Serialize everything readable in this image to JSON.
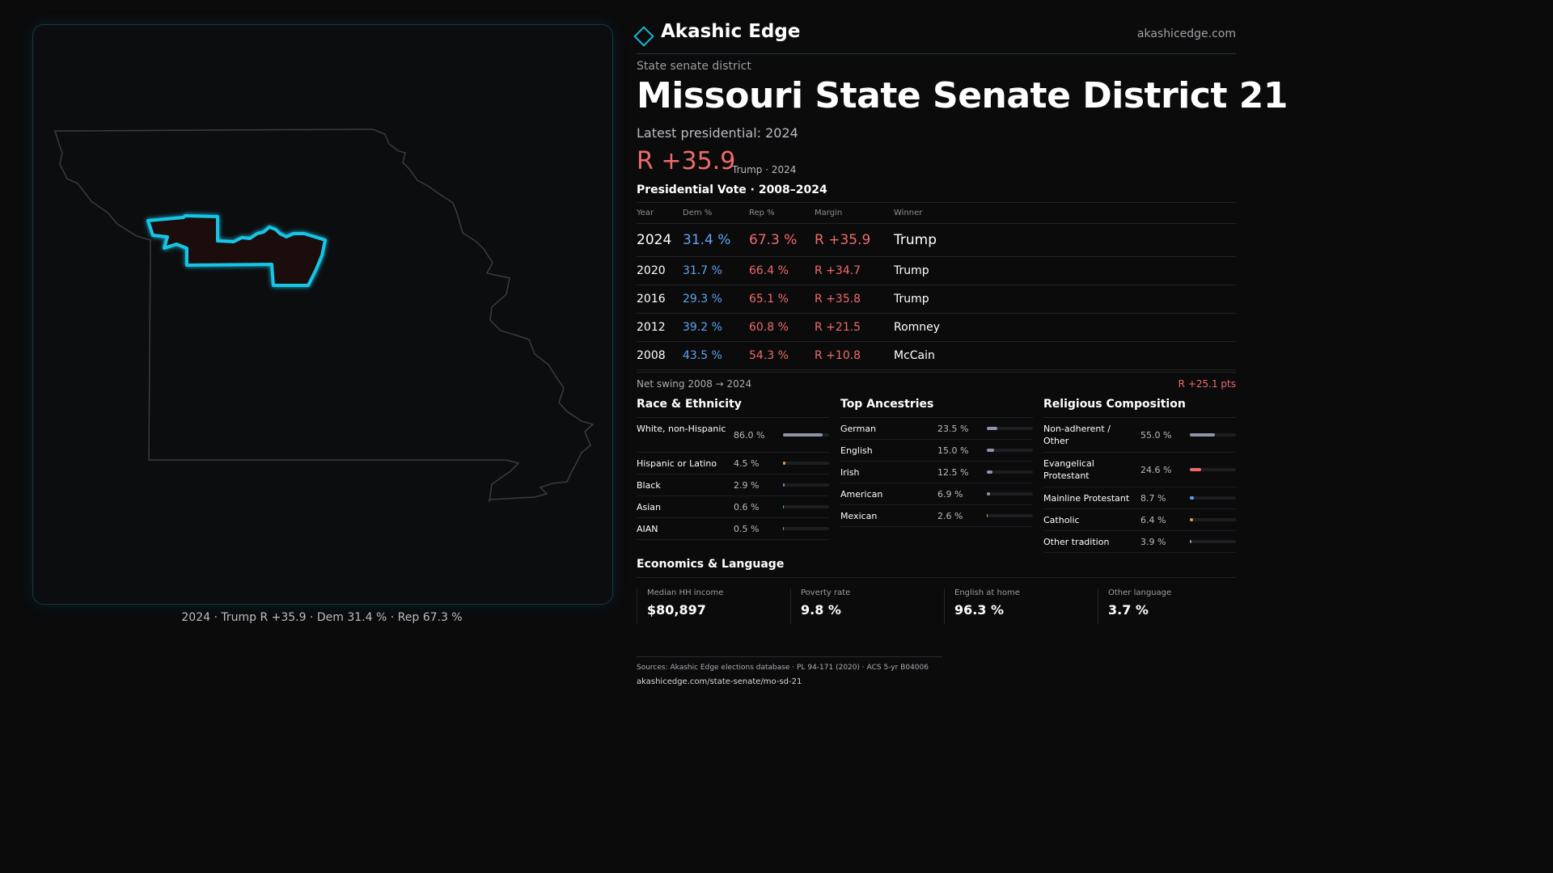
{
  "brand": {
    "name": "Akashic Edge",
    "url": "akashicedge.com"
  },
  "district": {
    "kind": "State senate district",
    "title": "Missouri State Senate District 21",
    "latest_label": "Latest presidential: 2024",
    "margin": "R +35.9",
    "margin_sub": "Trump · 2024"
  },
  "map": {
    "caption": "2024 · Trump R +35.9 · Dem 31.4 % · Rep 67.3 %",
    "district_outline_color": "#19c6e6",
    "state_outline_color": "#3b3c3f"
  },
  "vote_table": {
    "title": "Presidential Vote · 2008–2024",
    "headers": {
      "year": "Year",
      "dem": "Dem %",
      "rep": "Rep %",
      "margin": "Margin",
      "winner": "Winner"
    },
    "rows": [
      {
        "year": "2024",
        "dem": "31.4 %",
        "rep": "67.3 %",
        "margin": "R +35.9",
        "winner": "Trump"
      },
      {
        "year": "2020",
        "dem": "31.7 %",
        "rep": "66.4 %",
        "margin": "R +34.7",
        "winner": "Trump"
      },
      {
        "year": "2016",
        "dem": "29.3 %",
        "rep": "65.1 %",
        "margin": "R +35.8",
        "winner": "Trump"
      },
      {
        "year": "2012",
        "dem": "39.2 %",
        "rep": "60.8 %",
        "margin": "R +21.5",
        "winner": "Romney"
      },
      {
        "year": "2008",
        "dem": "43.5 %",
        "rep": "54.3 %",
        "margin": "R +10.8",
        "winner": "McCain"
      }
    ],
    "swing_label": "Net swing 2008 → 2024",
    "swing_value": "R +25.1 pts"
  },
  "race": {
    "title": "Race & Ethnicity",
    "items": [
      {
        "label": "White, non-Hispanic",
        "pct": "86.0 %",
        "value": 86.0,
        "color": "#8d96a8"
      },
      {
        "label": "Hispanic or Latino",
        "pct": "4.5 %",
        "value": 4.5,
        "color": "#e0a331"
      },
      {
        "label": "Black",
        "pct": "2.9 %",
        "value": 2.9,
        "color": "#6f87c8"
      },
      {
        "label": "Asian",
        "pct": "0.6 %",
        "value": 0.6,
        "color": "#3fb6a8"
      },
      {
        "label": "AIAN",
        "pct": "0.5 %",
        "value": 0.5,
        "color": "#9a7cd6"
      }
    ]
  },
  "ancestry": {
    "title": "Top Ancestries",
    "items": [
      {
        "label": "German",
        "pct": "23.5 %",
        "value": 23.5,
        "color": "#8d96a8"
      },
      {
        "label": "English",
        "pct": "15.0 %",
        "value": 15.0,
        "color": "#8d96a8"
      },
      {
        "label": "Irish",
        "pct": "12.5 %",
        "value": 12.5,
        "color": "#8d96a8"
      },
      {
        "label": "American",
        "pct": "6.9 %",
        "value": 6.9,
        "color": "#8d96a8"
      },
      {
        "label": "Mexican",
        "pct": "2.6 %",
        "value": 2.6,
        "color": "#e0a331"
      }
    ]
  },
  "religion": {
    "title": "Religious Composition",
    "items": [
      {
        "label": "Non-adherent / Other",
        "pct": "55.0 %",
        "value": 55.0,
        "color": "#8d96a8"
      },
      {
        "label": "Evangelical Protestant",
        "pct": "24.6 %",
        "value": 24.6,
        "color": "#ef6a6a"
      },
      {
        "label": "Mainline Protestant",
        "pct": "8.7 %",
        "value": 8.7,
        "color": "#5fa3f0"
      },
      {
        "label": "Catholic",
        "pct": "6.4 %",
        "value": 6.4,
        "color": "#e0a331"
      },
      {
        "label": "Other tradition",
        "pct": "3.9 %",
        "value": 3.9,
        "color": "#8d96a8"
      }
    ]
  },
  "economics": {
    "title": "Economics & Language",
    "cards": [
      {
        "label": "Median HH income",
        "value": "$80,897"
      },
      {
        "label": "Poverty rate",
        "value": "9.8 %"
      },
      {
        "label": "English at home",
        "value": "96.3 %"
      },
      {
        "label": "Other language",
        "value": "3.7 %"
      }
    ]
  },
  "footer": {
    "sources": "Sources: Akashic Edge elections database · PL 94-171 (2020) · ACS 5-yr B04006",
    "url": "akashicedge.com/state-senate/mo-sd-21"
  }
}
